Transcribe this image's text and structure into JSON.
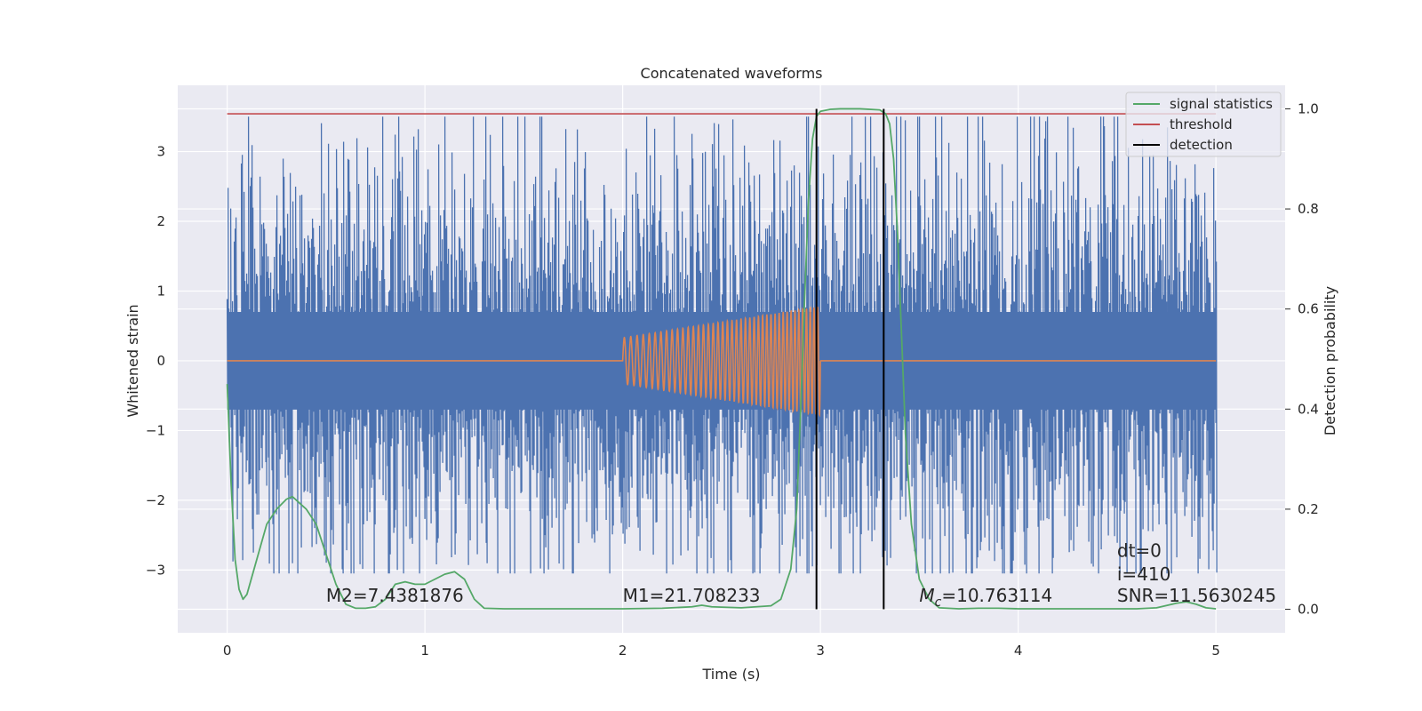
{
  "chart_data": {
    "type": "line",
    "title": "Concatenated waveforms",
    "xlabel": "Time (s)",
    "ylabel": "Whitened strain",
    "ylabel_right": "Detection probability",
    "xlim": [
      -0.25,
      5.35
    ],
    "ylim": [
      -3.9,
      3.95
    ],
    "ylim_right": [
      -0.047,
      1.047
    ],
    "x_ticks": [
      0,
      1,
      2,
      3,
      4,
      5
    ],
    "y_ticks": [
      -3,
      -2,
      -1,
      0,
      1,
      2,
      3
    ],
    "y_ticks_right": [
      0.0,
      0.2,
      0.4,
      0.6,
      0.8,
      1.0
    ],
    "x_tick_labels": [
      "0",
      "1",
      "2",
      "3",
      "4",
      "5"
    ],
    "y_tick_labels": [
      "−3",
      "−2",
      "−1",
      "0",
      "1",
      "2",
      "3"
    ],
    "y_tick_labels_right": [
      "0.0",
      "0.2",
      "0.4",
      "0.6",
      "0.8",
      "1.0"
    ],
    "grid": true,
    "legend_position": "top-right",
    "series": [
      {
        "key": "strain",
        "axis": "left",
        "color": "#4c72b0",
        "kind": "noise",
        "x_range": [
          0,
          5
        ],
        "envelope": {
          "p99": 2.3,
          "max_peak": 3.5,
          "min_trough": -3.05
        }
      },
      {
        "key": "injection",
        "axis": "left",
        "color": "#dd8452",
        "kind": "chirp",
        "x_range": [
          0,
          5
        ],
        "segment": [
          2.0,
          3.0
        ],
        "amplitude_start": 0.33,
        "amplitude_end": 0.78
      },
      {
        "key": "signal_statistics",
        "name": "signal statistics",
        "axis": "right",
        "color": "#55a868",
        "x": [
          0,
          0.02,
          0.04,
          0.06,
          0.08,
          0.1,
          0.15,
          0.2,
          0.25,
          0.3,
          0.33,
          0.4,
          0.45,
          0.5,
          0.55,
          0.6,
          0.65,
          0.7,
          0.75,
          0.8,
          0.85,
          0.9,
          0.95,
          1.0,
          1.05,
          1.1,
          1.15,
          1.2,
          1.25,
          1.3,
          1.4,
          1.6,
          1.8,
          2.0,
          2.2,
          2.35,
          2.4,
          2.45,
          2.6,
          2.75,
          2.8,
          2.85,
          2.88,
          2.9,
          2.92,
          2.94,
          2.96,
          2.98,
          3.0,
          3.05,
          3.1,
          3.2,
          3.3,
          3.33,
          3.35,
          3.37,
          3.39,
          3.41,
          3.43,
          3.46,
          3.5,
          3.55,
          3.6,
          3.7,
          3.8,
          3.9,
          4.0,
          4.2,
          4.4,
          4.6,
          4.7,
          4.8,
          4.85,
          4.9,
          4.95,
          5.0
        ],
        "values": [
          0.45,
          0.25,
          0.1,
          0.04,
          0.02,
          0.03,
          0.1,
          0.17,
          0.2,
          0.22,
          0.225,
          0.2,
          0.17,
          0.11,
          0.05,
          0.01,
          0.002,
          0.002,
          0.005,
          0.02,
          0.05,
          0.055,
          0.05,
          0.05,
          0.06,
          0.07,
          0.075,
          0.06,
          0.02,
          0.002,
          0.001,
          0.001,
          0.001,
          0.001,
          0.002,
          0.005,
          0.008,
          0.005,
          0.003,
          0.007,
          0.02,
          0.08,
          0.2,
          0.4,
          0.62,
          0.82,
          0.94,
          0.985,
          0.995,
          0.999,
          1.0,
          1.0,
          0.998,
          0.99,
          0.97,
          0.9,
          0.75,
          0.55,
          0.35,
          0.17,
          0.06,
          0.02,
          0.003,
          0.001,
          0.002,
          0.002,
          0.001,
          0.001,
          0.001,
          0.001,
          0.003,
          0.012,
          0.015,
          0.01,
          0.003,
          0.001
        ]
      },
      {
        "key": "threshold",
        "name": "threshold",
        "axis": "right",
        "color": "#c44e52",
        "x": [
          0,
          5
        ],
        "values": [
          0.99,
          0.99
        ]
      },
      {
        "key": "detection",
        "name": "detection",
        "axis": "right",
        "color": "#000000",
        "kind": "vlines",
        "x": [
          2.98,
          3.32
        ],
        "y_range": [
          0.0,
          1.0
        ]
      }
    ],
    "annotations": [
      {
        "text": "M2=7.4381876",
        "x": 0.5,
        "y": 0.015
      },
      {
        "text": "M1=21.708233",
        "x": 2.0,
        "y": 0.015
      },
      {
        "text_main": "M",
        "text_sub": "c",
        "text_rest": "=10.763114",
        "x": 3.5,
        "y": 0.015
      },
      {
        "text": "dt=0",
        "x": 4.5,
        "y": 0.105
      },
      {
        "text": "i=410",
        "x": 4.5,
        "y": 0.058
      },
      {
        "text": "SNR=11.5630245",
        "x": 4.5,
        "y": 0.015
      }
    ]
  }
}
